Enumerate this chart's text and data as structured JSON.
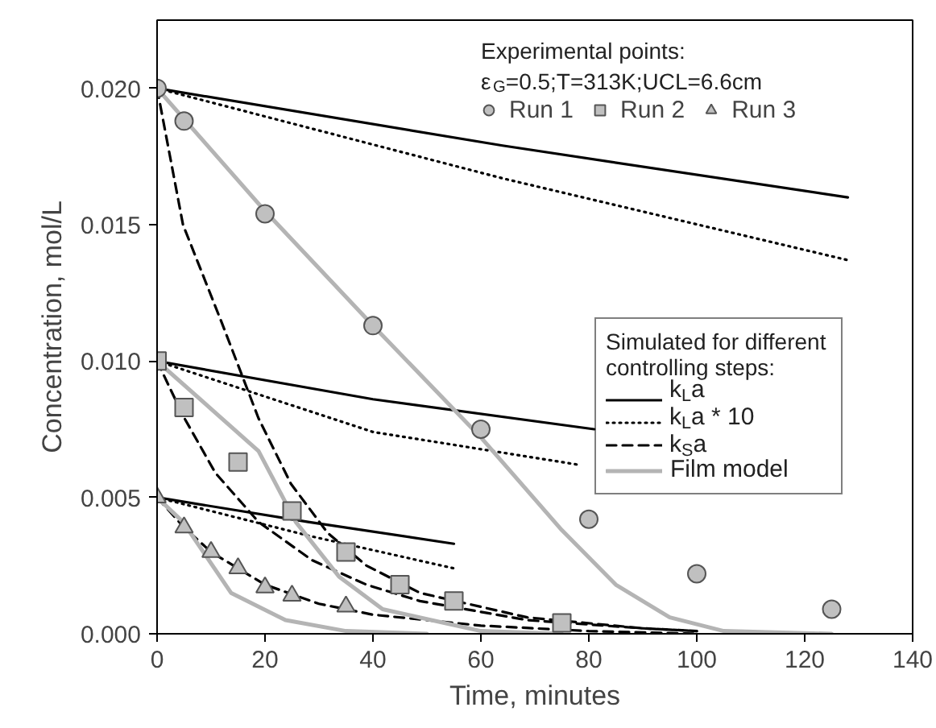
{
  "chart_data": {
    "type": "line",
    "xlabel": "Time, minutes",
    "ylabel": "Concentration, mol/L",
    "xlim": [
      0,
      140
    ],
    "ylim": [
      0,
      0.0225
    ],
    "xticks": [
      0,
      20,
      40,
      60,
      80,
      100,
      120,
      140
    ],
    "yticks": [
      {
        "value": 0,
        "label": "0.000"
      },
      {
        "value": 0.005,
        "label": "0.005"
      },
      {
        "value": 0.01,
        "label": "0.010"
      },
      {
        "value": 0.015,
        "label": "0.015"
      },
      {
        "value": 0.02,
        "label": "0.020"
      }
    ],
    "grid": false,
    "legend": "right",
    "legend_title": "Simulated for different controlling steps:",
    "annotations": [
      "Experimental points:",
      "ε$_{G}$=0.5;T=313K;UCL=6.6cm"
    ],
    "series": [
      {
        "name": "k$_{L}$a",
        "color": "#000000",
        "line_style": "solid",
        "x": [
          0,
          64,
          128
        ],
        "values": [
          0.02,
          0.0179,
          0.016
        ]
      },
      {
        "color": "#000000",
        "line_style": "solid",
        "x": [
          0,
          40,
          81
        ],
        "values": [
          0.01,
          0.0086,
          0.0075
        ]
      },
      {
        "color": "#000000",
        "line_style": "solid",
        "x": [
          0,
          28,
          55
        ],
        "values": [
          0.005,
          0.0041,
          0.0033
        ]
      },
      {
        "name": "k$_{L}$a * 10",
        "color": "#000000",
        "line_style": "dotted",
        "x": [
          0,
          64,
          128
        ],
        "values": [
          0.02,
          0.0167,
          0.0137
        ]
      },
      {
        "color": "#000000",
        "line_style": "dotted",
        "x": [
          0,
          40,
          78
        ],
        "values": [
          0.01,
          0.0074,
          0.0062
        ]
      },
      {
        "color": "#000000",
        "line_style": "dotted",
        "x": [
          0,
          28,
          55
        ],
        "values": [
          0.005,
          0.0036,
          0.0024
        ]
      },
      {
        "name": "k$_{S}$a",
        "color": "#000000",
        "line_style": "dashed",
        "x": [
          0,
          4.8,
          12,
          18.8,
          24.8,
          31.6,
          38.8,
          48.7,
          68.6,
          90,
          100
        ],
        "values": [
          0.02,
          0.015,
          0.0114,
          0.0079,
          0.0055,
          0.0037,
          0.0025,
          0.0015,
          0.0006,
          0.0002,
          0.0001
        ]
      },
      {
        "color": "#000000",
        "line_style": "dashed",
        "x": [
          0,
          4.8,
          10.8,
          18.8,
          28.7,
          38.8,
          48.7,
          68.6,
          90,
          100
        ],
        "values": [
          0.01,
          0.008,
          0.0059,
          0.0041,
          0.0027,
          0.0018,
          0.0012,
          0.0005,
          0.0002,
          0.0001
        ]
      },
      {
        "color": "#000000",
        "line_style": "dashed",
        "x": [
          0,
          5,
          10,
          20,
          30,
          40,
          60,
          80,
          100
        ],
        "values": [
          0.005,
          0.0039,
          0.003,
          0.0018,
          0.0011,
          0.0007,
          0.0003,
          0.0001,
          0.0
        ]
      },
      {
        "name": "Film model",
        "color": "#b4b4b4",
        "line_style": "solid",
        "x": [
          0,
          20,
          40,
          60,
          75,
          85,
          95,
          105,
          125
        ],
        "values": [
          0.02,
          0.0155,
          0.0113,
          0.0072,
          0.0038,
          0.0018,
          0.0006,
          0.0001,
          0
        ]
      },
      {
        "color": "#b4b4b4",
        "line_style": "solid",
        "x": [
          0,
          18.8,
          25.7,
          33.7,
          41.8,
          60,
          75
        ],
        "values": [
          0.01,
          0.0067,
          0.0041,
          0.0021,
          0.0009,
          0.0001,
          0
        ]
      },
      {
        "color": "#b4b4b4",
        "line_style": "solid",
        "x": [
          0,
          4.8,
          13.7,
          23.8,
          35,
          50
        ],
        "values": [
          0.005,
          0.0041,
          0.0015,
          0.0005,
          0.0001,
          0
        ]
      },
      {
        "type": "scatter",
        "name": "Run 1",
        "color": "#c0c0c0",
        "marker": "circle",
        "x": [
          0,
          5,
          20,
          40,
          60,
          80,
          100,
          125
        ],
        "values": [
          0.02,
          0.0188,
          0.0154,
          0.0113,
          0.0075,
          0.0042,
          0.0022,
          0.0009
        ]
      },
      {
        "type": "scatter",
        "name": "Run 2",
        "color": "#c0c0c0",
        "marker": "square",
        "x": [
          0,
          5,
          15,
          25,
          35,
          45,
          55,
          75
        ],
        "values": [
          0.01,
          0.0083,
          0.0063,
          0.0045,
          0.003,
          0.0018,
          0.0012,
          0.0004
        ]
      },
      {
        "type": "scatter",
        "name": "Run 3",
        "color": "#c0c0c0",
        "marker": "triangle",
        "x": [
          0,
          5,
          10,
          15,
          20,
          25,
          35
        ],
        "values": [
          0.005,
          0.0039,
          0.003,
          0.0024,
          0.0017,
          0.0014,
          0.001
        ]
      }
    ]
  }
}
